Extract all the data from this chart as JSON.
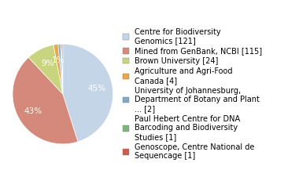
{
  "labels": [
    "Centre for Biodiversity\nGenomics [121]",
    "Mined from GenBank, NCBI [115]",
    "Brown University [24]",
    "Agriculture and Agri-Food\nCanada [4]",
    "University of Johannesburg,\nDepartment of Botany and Plant\n... [2]",
    "Paul Hebert Centre for DNA\nBarcoding and Biodiversity\nStudies [1]",
    "Genoscope, Centre National de\nSequencage [1]"
  ],
  "values": [
    121,
    115,
    24,
    4,
    2,
    1,
    1
  ],
  "colors": [
    "#c5d5e8",
    "#d4897a",
    "#c9d47e",
    "#e8a84a",
    "#7fa8c9",
    "#7ab87a",
    "#d45a4a"
  ],
  "startangle": 90,
  "background_color": "#ffffff",
  "legend_fontsize": 7.0,
  "autopct_fontsize": 7.5
}
